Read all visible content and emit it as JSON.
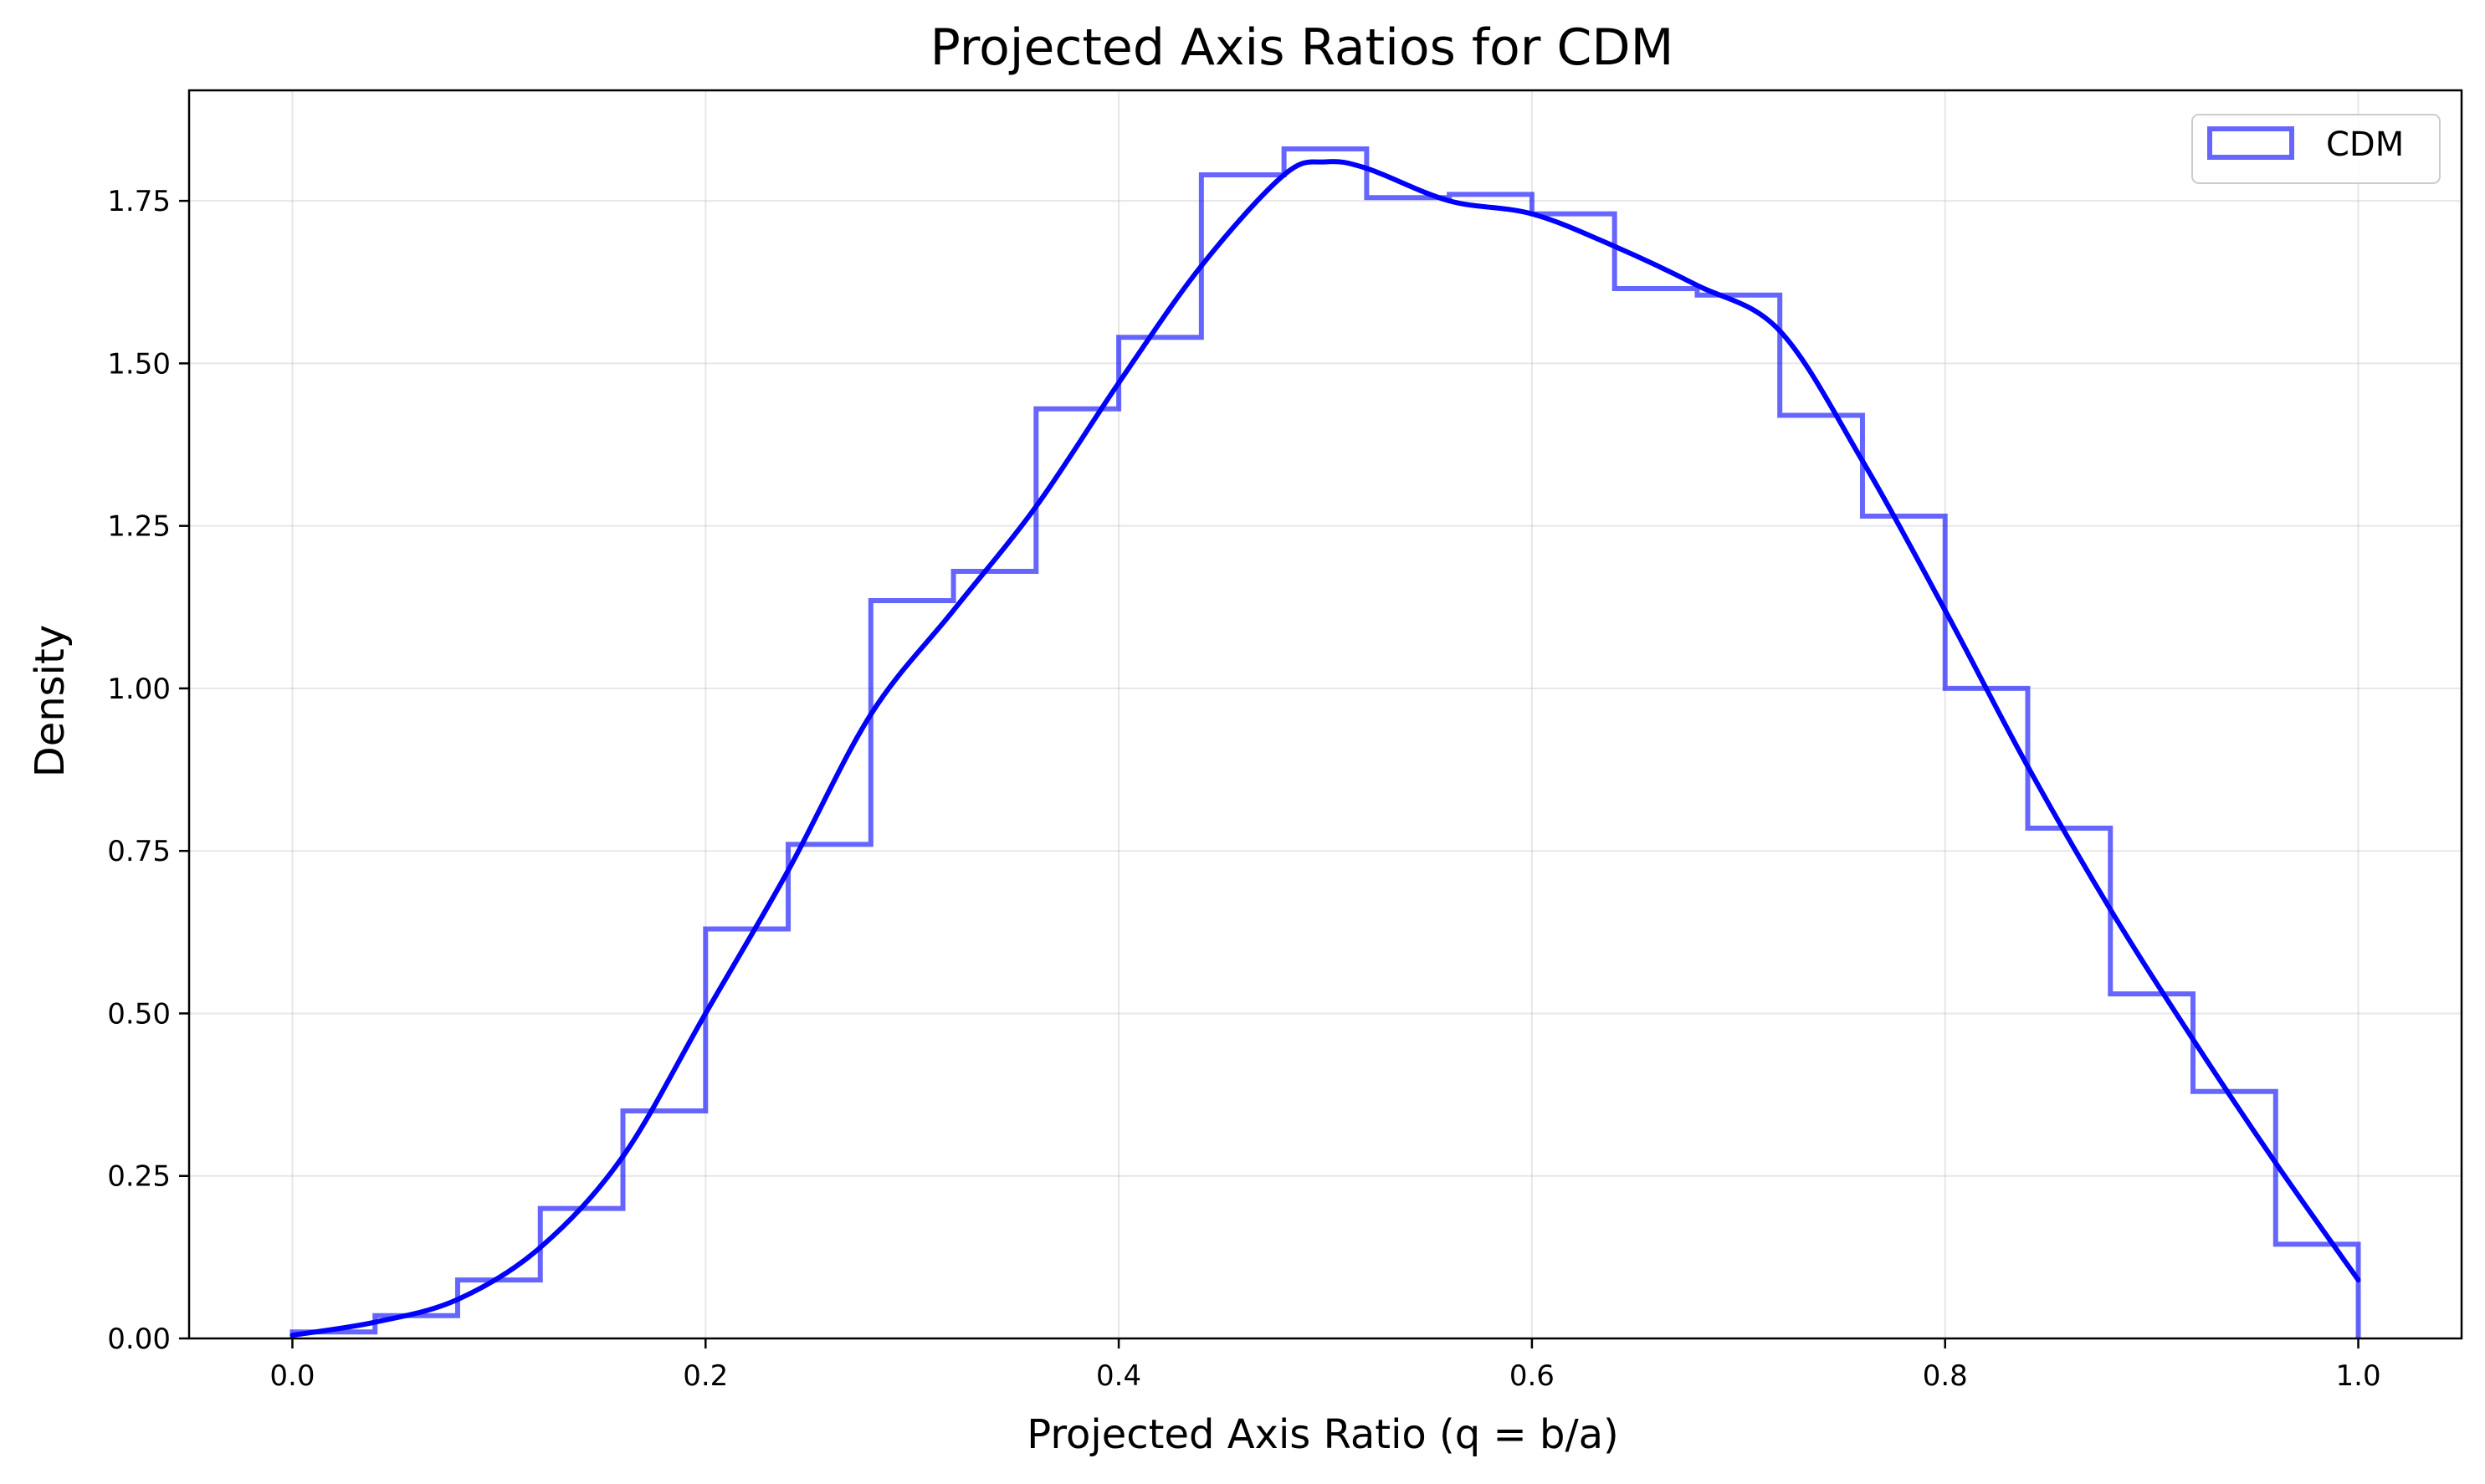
{
  "chart_data": {
    "type": "histogram",
    "title": "Projected Axis Ratios for CDM",
    "xlabel": "Projected Axis Ratio (q = b/a)",
    "ylabel": "Density",
    "xlim": [
      -0.05,
      1.05
    ],
    "ylim": [
      0,
      1.92
    ],
    "xticks": [
      0.0,
      0.2,
      0.4,
      0.6,
      0.8,
      1.0
    ],
    "xtick_labels": [
      "0.0",
      "0.2",
      "0.4",
      "0.6",
      "0.8",
      "1.0"
    ],
    "yticks": [
      0,
      0.25,
      0.5,
      0.75,
      1.0,
      1.25,
      1.5,
      1.75
    ],
    "ytick_labels": [
      "0.00",
      "0.25",
      "0.50",
      "0.75",
      "1.00",
      "1.25",
      "1.50",
      "1.75"
    ],
    "grid": true,
    "legend_position": "top-right",
    "series": [
      {
        "name": "CDM",
        "kind": "step-histogram",
        "color": "#0000ff",
        "alpha": 0.6,
        "bin_edges": [
          0.0,
          0.04,
          0.08,
          0.12,
          0.16,
          0.2,
          0.24,
          0.28,
          0.32,
          0.36,
          0.4,
          0.44,
          0.48,
          0.52,
          0.56,
          0.6,
          0.64,
          0.68,
          0.72,
          0.76,
          0.8,
          0.84,
          0.88,
          0.92,
          0.96,
          1.0
        ],
        "values": [
          0.01,
          0.035,
          0.09,
          0.2,
          0.35,
          0.63,
          0.76,
          1.135,
          1.18,
          1.43,
          1.54,
          1.79,
          1.83,
          1.755,
          1.76,
          1.73,
          1.615,
          1.605,
          1.42,
          1.265,
          1.0,
          0.785,
          0.53,
          0.38,
          0.145
        ]
      },
      {
        "kind": "kde",
        "color": "#0000ff",
        "x": [
          0.0,
          0.04,
          0.08,
          0.12,
          0.16,
          0.2,
          0.24,
          0.28,
          0.32,
          0.36,
          0.4,
          0.44,
          0.48,
          0.5,
          0.52,
          0.56,
          0.6,
          0.64,
          0.68,
          0.72,
          0.76,
          0.8,
          0.84,
          0.88,
          0.92,
          0.96,
          1.0
        ],
        "y": [
          0.005,
          0.025,
          0.06,
          0.14,
          0.28,
          0.5,
          0.72,
          0.96,
          1.12,
          1.28,
          1.47,
          1.65,
          1.79,
          1.81,
          1.8,
          1.75,
          1.73,
          1.68,
          1.62,
          1.55,
          1.35,
          1.12,
          0.88,
          0.66,
          0.46,
          0.27,
          0.09
        ]
      }
    ]
  }
}
